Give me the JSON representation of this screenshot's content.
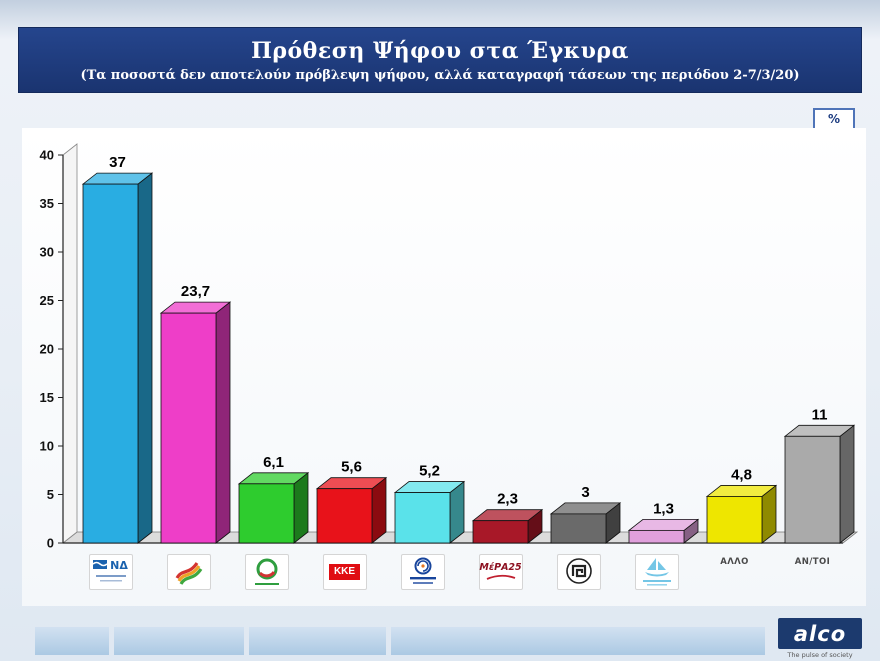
{
  "header": {
    "title": "Πρόθεση Ψήφου στα Έγκυρα",
    "subtitle": "(Τα ποσοστά δεν αποτελούν πρόβλεψη ψήφου, αλλά καταγραφή τάσεων της περιόδου 2-7/3/20)"
  },
  "unit_badge": "%",
  "chart_data": {
    "type": "bar",
    "style": "3d",
    "title": "Πρόθεση Ψήφου στα Έγκυρα",
    "categories": [
      "ΝΔ",
      "ΣΥΡΙΖΑ",
      "ΚΙΝΑΛ",
      "ΚΚΕ",
      "Ελληνική Λύση",
      "ΜέΡΑ25",
      "Χρυσή Αυγή",
      "Πλεύση Ελευθερίας",
      "ΑΛΛΟ",
      "ΑΝ/ΤΟΙ"
    ],
    "values": [
      37,
      23.7,
      6.1,
      5.6,
      5.2,
      2.3,
      3,
      1.3,
      4.8,
      11
    ],
    "value_labels": [
      "37",
      "23,7",
      "6,1",
      "5,6",
      "5,2",
      "2,3",
      "3",
      "1,3",
      "4,8",
      "11"
    ],
    "bar_colors": [
      "#29ade2",
      "#ee3ec8",
      "#2ecc2e",
      "#e8121a",
      "#5ae2ea",
      "#a81828",
      "#6a6a6a",
      "#e0a0dc",
      "#eee600",
      "#aaaaaa"
    ],
    "ylim": [
      0,
      40
    ],
    "ytick_step": 5,
    "yticks": [
      "0",
      "5",
      "10",
      "15",
      "20",
      "25",
      "30",
      "35",
      "40"
    ],
    "xlabel": "",
    "ylabel": "%",
    "grid": false,
    "legend": false
  },
  "footer": {
    "brand": "alco",
    "tagline": "The pulse of society"
  }
}
